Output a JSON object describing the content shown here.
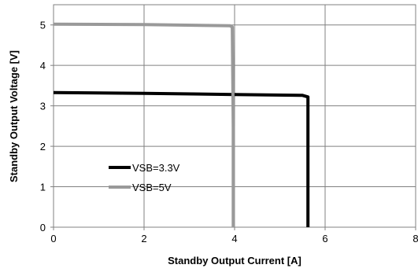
{
  "chart_data": {
    "type": "line",
    "title": "",
    "xlabel": "Standby Output Current [A]",
    "ylabel": "Standby Output Voltage [V]",
    "xlim": [
      0,
      8
    ],
    "ylim": [
      0,
      5.5
    ],
    "xticks": [
      "0",
      "2",
      "4",
      "6",
      "8"
    ],
    "yticks": [
      "0",
      "1",
      "2",
      "3",
      "4",
      "5"
    ],
    "grid": true,
    "legend_position": "left",
    "series": [
      {
        "name": "VSB=3.3V",
        "color": "#000000",
        "x": [
          0,
          2,
          4,
          5.5,
          5.62,
          5.62,
          5.62
        ],
        "y": [
          3.33,
          3.31,
          3.28,
          3.26,
          3.22,
          1.5,
          0
        ]
      },
      {
        "name": "VSB=5V",
        "color": "#999999",
        "x": [
          0,
          2,
          3.9,
          3.95,
          3.97,
          3.97
        ],
        "y": [
          5.02,
          5.01,
          4.98,
          4.95,
          2.5,
          0
        ]
      }
    ]
  }
}
